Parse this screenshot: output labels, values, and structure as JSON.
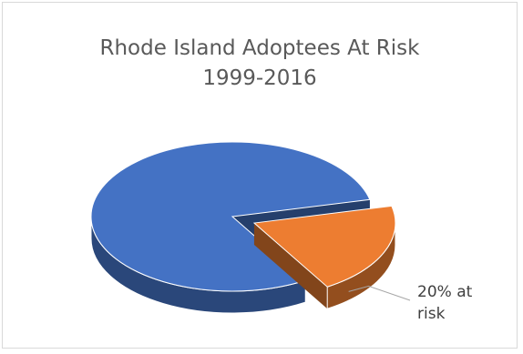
{
  "chart_data": {
    "type": "pie",
    "title": "Rhode Island Adoptees At Risk",
    "subtitle": "1999-2016",
    "slices": [
      {
        "value": 80,
        "color": "#4472c4",
        "exploded": false
      },
      {
        "value": 20,
        "color": "#ed7d31",
        "exploded": true,
        "label_lines": [
          "20% at",
          "risk"
        ]
      }
    ],
    "style": "3d-exploded"
  }
}
